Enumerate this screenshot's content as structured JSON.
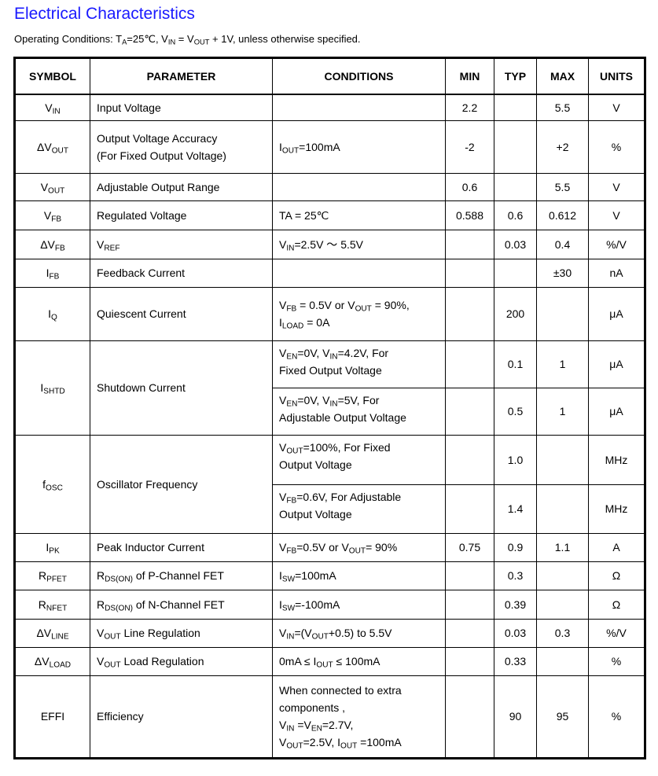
{
  "title": "Electrical Characteristics",
  "subtitle": [
    "Operating Conditions: T",
    {
      "sub": "A"
    },
    "=25℃, V",
    {
      "sub": "IN"
    },
    " = V",
    {
      "sub": "OUT"
    },
    " + 1V, unless otherwise specified."
  ],
  "table": {
    "headers": [
      "SYMBOL",
      "PARAMETER",
      "CONDITIONS",
      "MIN",
      "TYP",
      "MAX",
      "UNITS"
    ],
    "rows": [
      {
        "symbol": [
          "V",
          {
            "sub": "IN"
          }
        ],
        "parameter": [
          "Input Voltage"
        ],
        "conditions": [
          []
        ],
        "min": [
          "2.2"
        ],
        "typ": [
          ""
        ],
        "max": [
          "5.5"
        ],
        "units": [
          "V"
        ]
      },
      {
        "symbol": [
          "ΔV",
          {
            "sub": "OUT"
          }
        ],
        "parameter": [
          "Output Voltage Accuracy",
          {
            "br": 1
          },
          "(For Fixed Output Voltage)"
        ],
        "conditions": [
          [
            "I",
            {
              "sub": "OUT"
            },
            "=100mA"
          ]
        ],
        "min": [
          "-2"
        ],
        "typ": [
          ""
        ],
        "max": [
          "+2"
        ],
        "units": [
          "%"
        ]
      },
      {
        "symbol": [
          "V",
          {
            "sub": "OUT"
          }
        ],
        "parameter": [
          "Adjustable Output Range"
        ],
        "conditions": [
          []
        ],
        "min": [
          "0.6"
        ],
        "typ": [
          ""
        ],
        "max": [
          "5.5"
        ],
        "units": [
          "V"
        ]
      },
      {
        "symbol": [
          "V",
          {
            "sub": "FB"
          }
        ],
        "parameter": [
          "Regulated Voltage"
        ],
        "conditions": [
          [
            "TA = 25℃"
          ]
        ],
        "min": [
          "0.588"
        ],
        "typ": [
          "0.6"
        ],
        "max": [
          "0.612"
        ],
        "units": [
          "V"
        ]
      },
      {
        "symbol": [
          "ΔV",
          {
            "sub": "FB"
          }
        ],
        "parameter": [
          "V",
          {
            "sub": "REF"
          }
        ],
        "conditions": [
          [
            "V",
            {
              "sub": "IN"
            },
            "=2.5V  ～ 5.5V"
          ]
        ],
        "min": [
          ""
        ],
        "typ": [
          "0.03"
        ],
        "max": [
          "0.4"
        ],
        "units": [
          "%/V"
        ]
      },
      {
        "symbol": [
          "I",
          {
            "sub": "FB"
          }
        ],
        "parameter": [
          "Feedback Current"
        ],
        "conditions": [
          []
        ],
        "min": [
          ""
        ],
        "typ": [
          ""
        ],
        "max": [
          "±30"
        ],
        "units": [
          "nA"
        ]
      },
      {
        "symbol": [
          "I",
          {
            "sub": "Q"
          }
        ],
        "parameter": [
          "Quiescent Current"
        ],
        "conditions": [
          [
            "V",
            {
              "sub": "FB"
            },
            " = 0.5V or V",
            {
              "sub": "OUT"
            },
            " = 90%,",
            {
              "br": 1
            },
            "I",
            {
              "sub": "LOAD"
            },
            " = 0A"
          ]
        ],
        "min": [
          ""
        ],
        "typ": [
          "200"
        ],
        "max": [
          ""
        ],
        "units": [
          "μA"
        ]
      },
      {
        "symbol": [
          "I",
          {
            "sub": "SHTD"
          }
        ],
        "parameter": [
          "Shutdown Current"
        ],
        "conditions": [
          [
            "V",
            {
              "sub": "EN"
            },
            "=0V, V",
            {
              "sub": "IN"
            },
            "=4.2V, For",
            {
              "br": 1
            },
            "Fixed Output Voltage"
          ],
          [
            "V",
            {
              "sub": "EN"
            },
            "=0V, V",
            {
              "sub": "IN"
            },
            "=5V, For",
            {
              "br": 1
            },
            "Adjustable Output Voltage"
          ]
        ],
        "min": [
          "",
          ""
        ],
        "typ": [
          "0.1",
          "0.5"
        ],
        "max": [
          "1",
          "1"
        ],
        "units": [
          "μA",
          "μA"
        ]
      },
      {
        "symbol": [
          "f",
          {
            "sub": "OSC"
          }
        ],
        "parameter": [
          "Oscillator Frequency"
        ],
        "conditions": [
          [
            "V",
            {
              "sub": "OUT"
            },
            "=100%, For Fixed",
            {
              "br": 1
            },
            "Output Voltage"
          ],
          [
            "V",
            {
              "sub": "FB"
            },
            "=0.6V, For Adjustable",
            {
              "br": 1
            },
            "Output Voltage"
          ]
        ],
        "min": [
          "",
          ""
        ],
        "typ": [
          "1.0",
          "1.4"
        ],
        "max": [
          "",
          ""
        ],
        "units": [
          "MHz",
          "MHz"
        ]
      },
      {
        "symbol": [
          "I",
          {
            "sub": "PK"
          }
        ],
        "parameter": [
          "Peak Inductor Current"
        ],
        "conditions": [
          [
            "V",
            {
              "sub": "FB"
            },
            "=0.5V or V",
            {
              "sub": "OUT"
            },
            "= 90%"
          ]
        ],
        "min": [
          "0.75"
        ],
        "typ": [
          "0.9"
        ],
        "max": [
          "1.1"
        ],
        "units": [
          "A"
        ]
      },
      {
        "symbol": [
          "R",
          {
            "sub": "PFET"
          }
        ],
        "parameter": [
          "R",
          {
            "sub": "DS(ON)"
          },
          " of P-Channel FET"
        ],
        "conditions": [
          [
            "I",
            {
              "sub": "SW"
            },
            "=100mA"
          ]
        ],
        "min": [
          ""
        ],
        "typ": [
          "0.3"
        ],
        "max": [
          ""
        ],
        "units": [
          "Ω"
        ]
      },
      {
        "symbol": [
          "R",
          {
            "sub": "NFET"
          }
        ],
        "parameter": [
          "R",
          {
            "sub": "DS(ON)"
          },
          " of N-Channel FET"
        ],
        "conditions": [
          [
            "I",
            {
              "sub": "SW"
            },
            "=-100mA"
          ]
        ],
        "min": [
          ""
        ],
        "typ": [
          "0.39"
        ],
        "max": [
          ""
        ],
        "units": [
          "Ω"
        ]
      },
      {
        "symbol": [
          "ΔV",
          {
            "sub": "LINE"
          }
        ],
        "parameter": [
          "V",
          {
            "sub": "OUT"
          },
          " Line Regulation"
        ],
        "conditions": [
          [
            "V",
            {
              "sub": "IN"
            },
            "=(V",
            {
              "sub": "OUT"
            },
            "+0.5) to 5.5V"
          ]
        ],
        "min": [
          ""
        ],
        "typ": [
          "0.03"
        ],
        "max": [
          "0.3"
        ],
        "units": [
          "%/V"
        ]
      },
      {
        "symbol": [
          "ΔV",
          {
            "sub": "LOAD"
          }
        ],
        "parameter": [
          "V",
          {
            "sub": "OUT"
          },
          " Load Regulation"
        ],
        "conditions": [
          [
            "0mA ≤ I",
            {
              "sub": "OUT"
            },
            " ≤ 100mA"
          ]
        ],
        "min": [
          ""
        ],
        "typ": [
          "0.33"
        ],
        "max": [
          ""
        ],
        "units": [
          "%"
        ]
      },
      {
        "symbol": [
          "EFFI"
        ],
        "parameter": [
          "Efficiency"
        ],
        "conditions": [
          [
            "When connected to extra",
            {
              "br": 1
            },
            "components ,",
            {
              "br": 1
            },
            "V",
            {
              "sub": "IN"
            },
            " =V",
            {
              "sub": "EN"
            },
            "=2.7V,",
            {
              "br": 1
            },
            "V",
            {
              "sub": "OUT"
            },
            "=2.5V, I",
            {
              "sub": "OUT"
            },
            " =100mA"
          ]
        ],
        "min": [
          ""
        ],
        "typ": [
          "90"
        ],
        "max": [
          "95"
        ],
        "units": [
          "%"
        ]
      }
    ]
  }
}
